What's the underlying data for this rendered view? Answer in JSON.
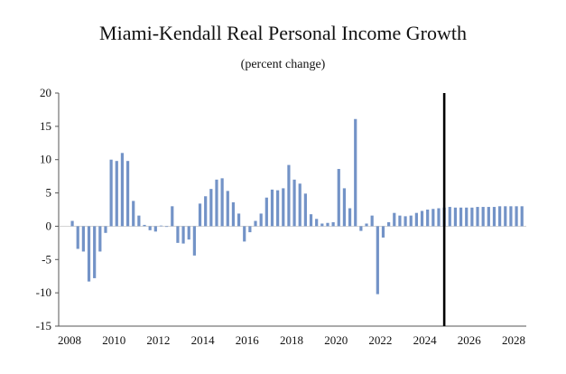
{
  "chart_data": {
    "type": "bar",
    "title": "Miami-Kendall Real Personal Income Growth",
    "subtitle": "(percent change)",
    "xlabel": "",
    "ylabel": "",
    "ylim": [
      -15,
      20
    ],
    "y_ticks": [
      20,
      15,
      10,
      5,
      0,
      -5,
      -10,
      -15
    ],
    "x_ticks": [
      "2008",
      "2010",
      "2012",
      "2014",
      "2016",
      "2018",
      "2020",
      "2022",
      "2024",
      "2026",
      "2028"
    ],
    "x_start_year": 2008,
    "x_end_year": 2028,
    "grid": false,
    "bar_color": "#7393c7",
    "marker_color": "#000000",
    "forecast_marker_x": "2024Q4",
    "categories": [
      "2008Q1",
      "2008Q2",
      "2008Q3",
      "2008Q4",
      "2009Q1",
      "2009Q2",
      "2009Q3",
      "2009Q4",
      "2010Q1",
      "2010Q2",
      "2010Q3",
      "2010Q4",
      "2011Q1",
      "2011Q2",
      "2011Q3",
      "2011Q4",
      "2012Q1",
      "2012Q2",
      "2012Q3",
      "2012Q4",
      "2013Q1",
      "2013Q2",
      "2013Q3",
      "2013Q4",
      "2014Q1",
      "2014Q2",
      "2014Q3",
      "2014Q4",
      "2015Q1",
      "2015Q2",
      "2015Q3",
      "2015Q4",
      "2016Q1",
      "2016Q2",
      "2016Q3",
      "2016Q4",
      "2017Q1",
      "2017Q2",
      "2017Q3",
      "2017Q4",
      "2018Q1",
      "2018Q2",
      "2018Q3",
      "2018Q4",
      "2019Q1",
      "2019Q2",
      "2019Q3",
      "2019Q4",
      "2020Q1",
      "2020Q2",
      "2020Q3",
      "2020Q4",
      "2021Q1",
      "2021Q2",
      "2021Q3",
      "2021Q4",
      "2022Q1",
      "2022Q2",
      "2022Q3",
      "2022Q4",
      "2023Q1",
      "2023Q2",
      "2023Q3",
      "2023Q4",
      "2024Q1",
      "2024Q2",
      "2024Q3",
      "2024Q4",
      "2025Q1",
      "2025Q2",
      "2025Q3",
      "2025Q4",
      "2026Q1",
      "2026Q2",
      "2026Q3",
      "2026Q4",
      "2027Q1",
      "2027Q2",
      "2027Q3",
      "2027Q4",
      "2028Q1",
      "2028Q2"
    ],
    "values": [
      0.8,
      -3.4,
      -3.8,
      -8.3,
      -7.8,
      -3.8,
      -1.0,
      10.0,
      9.8,
      11.0,
      9.8,
      3.8,
      1.6,
      0.2,
      -0.6,
      -0.8,
      0.1,
      -0.1,
      3.0,
      -2.5,
      -2.6,
      -2.0,
      -4.4,
      3.4,
      4.5,
      5.6,
      7.0,
      7.2,
      5.3,
      3.6,
      1.9,
      -2.3,
      -0.9,
      0.8,
      1.9,
      4.3,
      5.5,
      5.4,
      5.7,
      9.2,
      7.0,
      6.4,
      4.9,
      1.8,
      1.1,
      0.4,
      0.5,
      0.6,
      8.6,
      5.7,
      2.7,
      16.1,
      -0.7,
      0.4,
      1.6,
      -10.2,
      -1.7,
      0.6,
      2.0,
      1.6,
      1.5,
      1.6,
      2.0,
      2.3,
      2.5,
      2.6,
      2.7,
      2.8,
      2.9,
      2.8,
      2.8,
      2.8,
      2.8,
      2.9,
      2.9,
      2.9,
      2.9,
      3.0,
      3.0,
      3.0,
      3.0,
      3.0
    ]
  }
}
